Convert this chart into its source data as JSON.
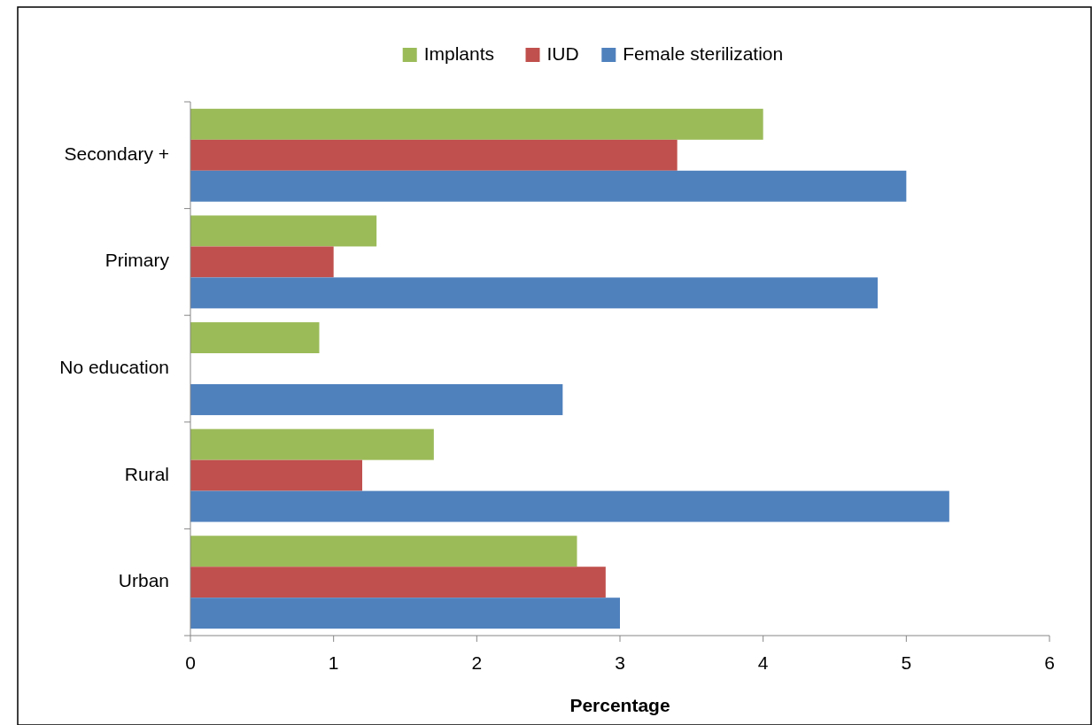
{
  "chart_data": {
    "type": "bar",
    "orientation": "horizontal",
    "xlabel": "Percentage",
    "categories": [
      "Secondary +",
      "Primary",
      "No education",
      "Rural",
      "Urban"
    ],
    "series": [
      {
        "name": "Implants",
        "color": "#9bbb59",
        "values": [
          4.0,
          1.3,
          0.9,
          1.7,
          2.7
        ]
      },
      {
        "name": "IUD",
        "color": "#c0504d",
        "values": [
          3.4,
          1.0,
          0,
          1.2,
          2.9
        ]
      },
      {
        "name": "Female sterilization",
        "color": "#4f81bd",
        "values": [
          5.0,
          4.8,
          2.6,
          5.3,
          3.0
        ]
      }
    ],
    "xlim": [
      0,
      6
    ],
    "xticks": [
      0,
      1,
      2,
      3,
      4,
      5,
      6
    ],
    "grid": false,
    "legend": "top"
  }
}
